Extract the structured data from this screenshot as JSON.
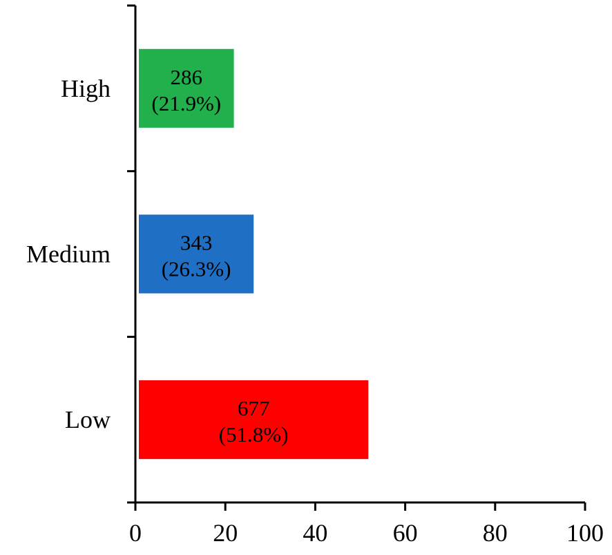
{
  "chart_data": {
    "type": "bar",
    "orientation": "horizontal",
    "categories": [
      "High",
      "Medium",
      "Low"
    ],
    "values": [
      21.9,
      26.3,
      51.8
    ],
    "counts": [
      "286",
      "343",
      "677"
    ],
    "percent_labels": [
      "(21.9%)",
      "(26.3%)",
      "(51.8%)"
    ],
    "colors": [
      "#21B04B",
      "#1F6FC4",
      "#FF0000"
    ],
    "xlim": [
      0,
      100
    ],
    "xticks": [
      0,
      20,
      40,
      60,
      80,
      100
    ],
    "xlabel": "",
    "ylabel": "",
    "title": "",
    "grid": false,
    "legend": "none"
  }
}
